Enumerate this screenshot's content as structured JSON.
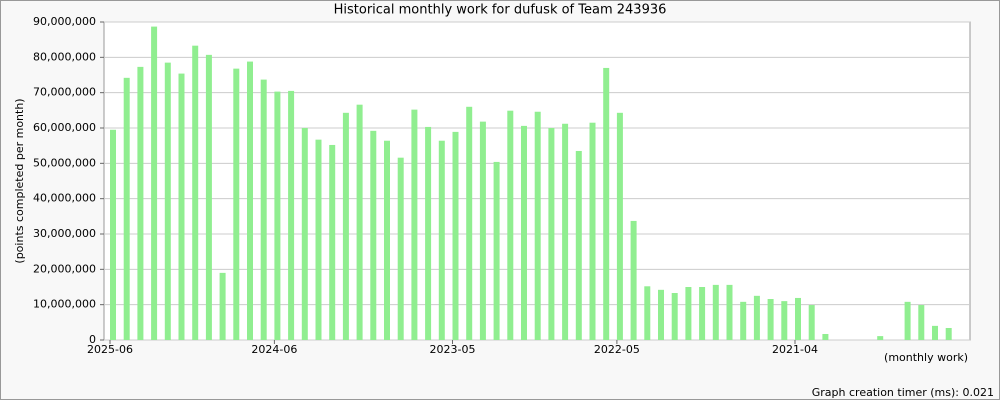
{
  "chart_data": {
    "type": "bar",
    "title": "Historical monthly work for dufusk of Team 243936",
    "y_label": "(points completed per month)",
    "x_label": "(monthly work)",
    "footer": "Graph creation timer (ms): 0.021",
    "color": "#90ee90",
    "grid": true,
    "categories": [
      "2025-06",
      null,
      null,
      null,
      null,
      null,
      null,
      null,
      null,
      null,
      null,
      null,
      "2024-06",
      null,
      null,
      null,
      null,
      null,
      null,
      null,
      null,
      null,
      null,
      null,
      null,
      "2023-05",
      null,
      null,
      null,
      null,
      null,
      null,
      null,
      null,
      null,
      null,
      null,
      "2022-05",
      null,
      null,
      null,
      null,
      null,
      null,
      null,
      null,
      null,
      null,
      null,
      null,
      "2021-04",
      null,
      null,
      null,
      null,
      null,
      null,
      null,
      null,
      null,
      null,
      null
    ],
    "values": [
      59500000,
      74200000,
      77300000,
      88700000,
      78500000,
      75400000,
      83300000,
      80700000,
      19000000,
      76800000,
      78800000,
      73700000,
      70300000,
      70500000,
      60000000,
      56700000,
      55200000,
      64300000,
      66600000,
      59200000,
      56400000,
      51600000,
      65200000,
      60300000,
      56400000,
      58900000,
      66000000,
      61800000,
      50400000,
      64900000,
      60600000,
      64600000,
      60000000,
      61200000,
      53500000,
      61500000,
      77000000,
      64300000,
      33700000,
      15200000,
      14200000,
      13300000,
      15000000,
      15000000,
      15600000,
      15600000,
      10800000,
      12500000,
      11600000,
      11000000,
      11900000,
      9900000,
      1700000,
      0,
      0,
      0,
      1100000,
      0,
      10800000,
      9900000,
      4000000,
      3400000
    ],
    "ylim": [
      0,
      90000000
    ],
    "yticks": [
      0,
      {
        "value": 10000000,
        "label": "10,000,000"
      },
      {
        "value": 20000000,
        "label": "20,000,000"
      },
      {
        "value": 30000000,
        "label": "30,000,000"
      },
      {
        "value": 40000000,
        "label": "40,000,000"
      },
      {
        "value": 50000000,
        "label": "50,000,000"
      },
      {
        "value": 60000000,
        "label": "60,000,000"
      },
      {
        "value": 70000000,
        "label": "70,000,000"
      },
      {
        "value": 80000000,
        "label": "80,000,000"
      },
      {
        "value": 90000000,
        "label": "90,000,000"
      }
    ]
  }
}
